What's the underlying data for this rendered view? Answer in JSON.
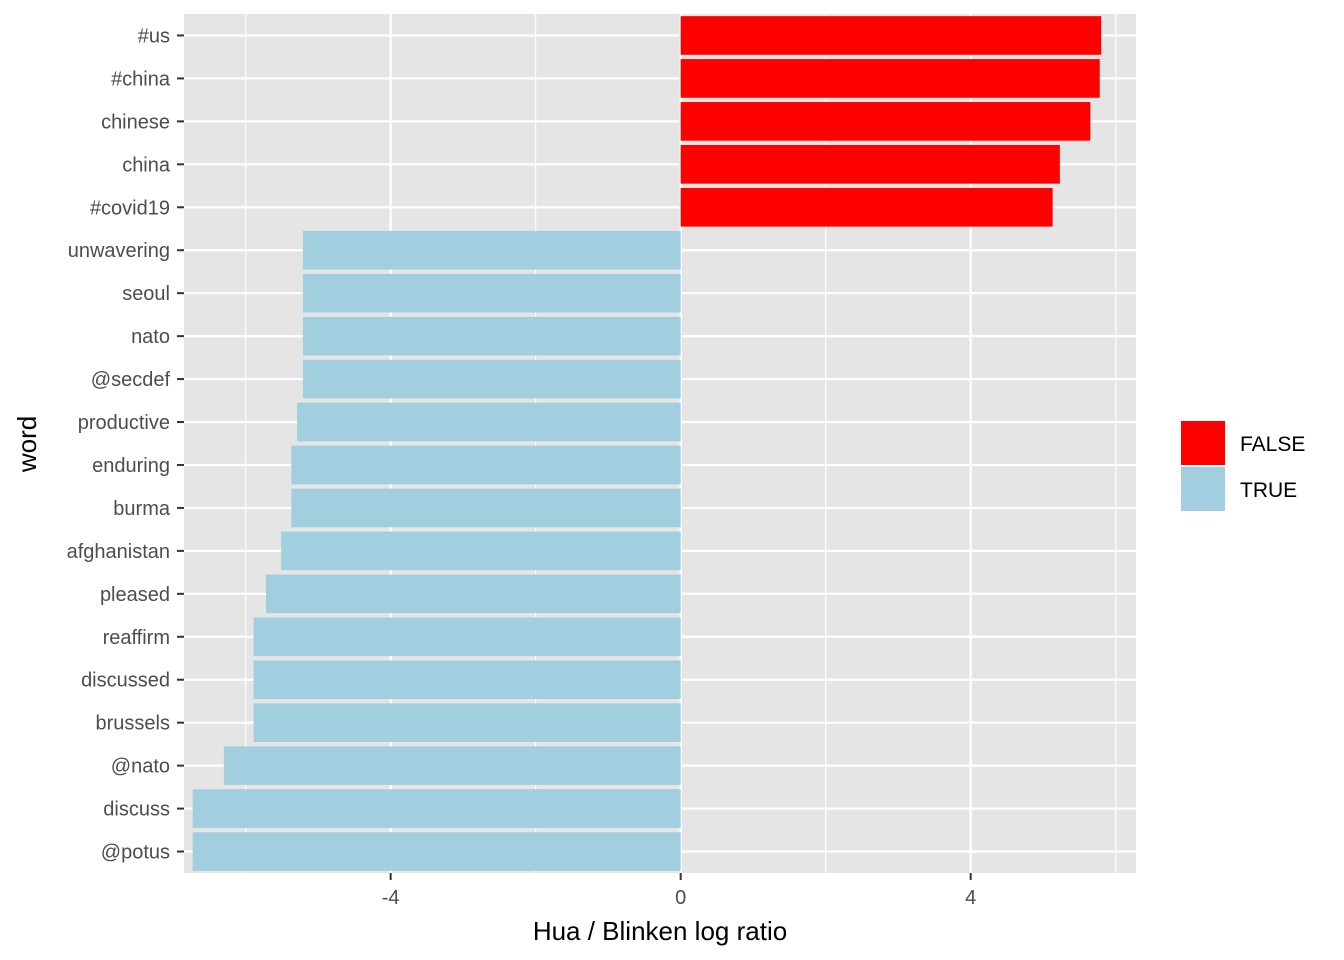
{
  "chart_data": {
    "type": "bar",
    "orientation": "horizontal",
    "xlabel": "Hua / Blinken log ratio",
    "ylabel": "word",
    "xlim": [
      -6.85,
      6.28
    ],
    "x_ticks": [
      -4,
      0,
      4
    ],
    "x_tick_labels": [
      "-4",
      "0",
      "4"
    ],
    "grid": true,
    "legend_position": "right",
    "colors": {
      "FALSE": "#ff0000",
      "TRUE": "#a1cfe0",
      "panel": "#e5e5e5",
      "grid": "#ffffff"
    },
    "legend": [
      {
        "label": "FALSE",
        "color": "#ff0000"
      },
      {
        "label": "TRUE",
        "color": "#a1cfe0"
      }
    ],
    "categories": [
      "#us",
      "#china",
      "chinese",
      "china",
      "#covid19",
      "unwavering",
      "seoul",
      "nato",
      "@secdef",
      "productive",
      "enduring",
      "burma",
      "afghanistan",
      "pleased",
      "reaffirm",
      "discussed",
      "brussels",
      "@nato",
      "discuss",
      "@potus"
    ],
    "values": [
      5.8,
      5.78,
      5.65,
      5.23,
      5.13,
      -5.21,
      -5.21,
      -5.21,
      -5.21,
      -5.29,
      -5.37,
      -5.37,
      -5.51,
      -5.72,
      -5.89,
      -5.89,
      -5.89,
      -6.3,
      -6.73,
      -6.73
    ],
    "groups": [
      "FALSE",
      "FALSE",
      "FALSE",
      "FALSE",
      "FALSE",
      "TRUE",
      "TRUE",
      "TRUE",
      "TRUE",
      "TRUE",
      "TRUE",
      "TRUE",
      "TRUE",
      "TRUE",
      "TRUE",
      "TRUE",
      "TRUE",
      "TRUE",
      "TRUE",
      "TRUE"
    ]
  }
}
